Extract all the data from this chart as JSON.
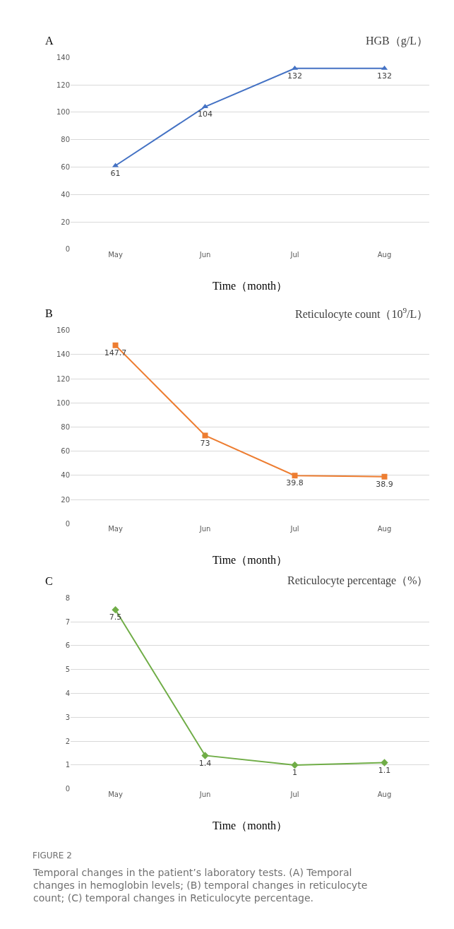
{
  "chart_data": [
    {
      "type": "line",
      "title": "A",
      "ylabel": "HGB（g/L）",
      "xlabel": "Time（month）",
      "categories": [
        "May",
        "Jun",
        "Jul",
        "Aug"
      ],
      "series": [
        {
          "color": "#4472c4",
          "values": [
            61,
            104,
            132,
            132
          ]
        }
      ],
      "ylim": [
        0,
        140
      ],
      "yticks": [
        0,
        20,
        40,
        60,
        80,
        100,
        120,
        140
      ],
      "grid": "y",
      "marker": "triangle",
      "line_style": "solid",
      "data_labels": true
    },
    {
      "type": "line",
      "title": "B",
      "ylabel": "Reticulocyte count（10$^{9}$/L）",
      "xlabel": "Time（month）",
      "categories": [
        "May",
        "Jun",
        "Jul",
        "Aug"
      ],
      "series": [
        {
          "color": "#ed7d31",
          "values": [
            147.7,
            73,
            39.8,
            38.9
          ]
        }
      ],
      "ylim": [
        0,
        160
      ],
      "yticks": [
        0,
        20,
        40,
        60,
        80,
        100,
        120,
        140,
        160
      ],
      "grid": "y",
      "marker": "square",
      "line_style": "solid",
      "data_labels": true
    },
    {
      "type": "line",
      "title": "C",
      "ylabel": "Reticulocyte percentage（%）",
      "xlabel": "Time（month）",
      "categories": [
        "May",
        "Jun",
        "Jul",
        "Aug"
      ],
      "series": [
        {
          "color": "#70ad47",
          "values": [
            7.5,
            1.4,
            1,
            1.1
          ]
        }
      ],
      "ylim": [
        0,
        8
      ],
      "yticks": [
        0,
        1,
        2,
        3,
        4,
        5,
        6,
        7,
        8
      ],
      "grid": "y",
      "marker": "diamond",
      "line_style": "solid",
      "data_labels": true,
      "annotations": [
        "FIGURE 2",
        "Temporal changes in the patient’s laboratory tests. (A) Temporal changes in hemoglobin levels; (B) temporal changes in reticulocyte count; (C) temporal changes in Reticulocyte percentage."
      ]
    }
  ]
}
